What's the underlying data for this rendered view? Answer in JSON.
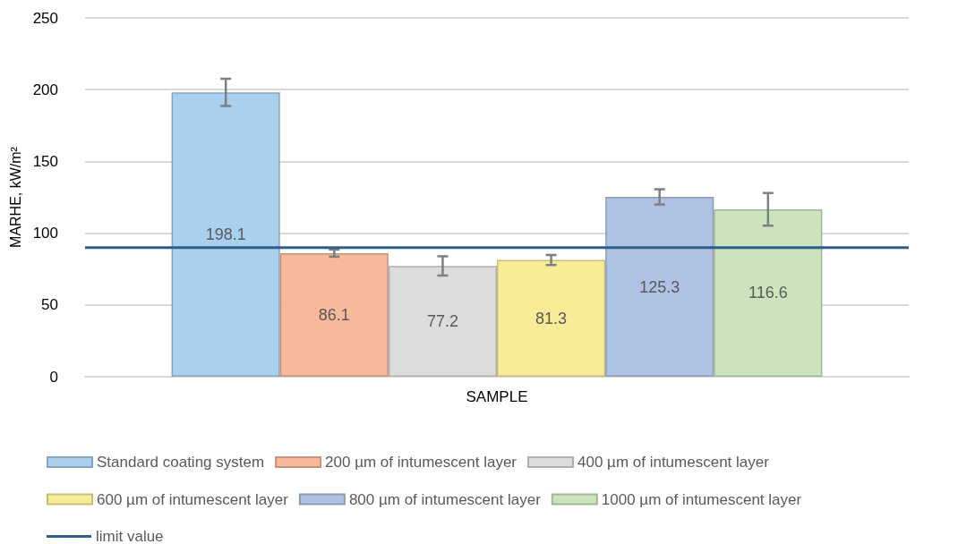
{
  "chart_data": {
    "type": "bar",
    "ylabel": "MARHE, kW/m²",
    "categories": [
      "SAMPLE"
    ],
    "series": [
      {
        "name": "Standard coating system",
        "color": "#a9d0ee",
        "values": [
          198.1
        ],
        "errors": [
          9.5
        ]
      },
      {
        "name": "200 µm of intumescent layer",
        "color": "#f7b89c",
        "values": [
          86.1
        ],
        "errors": [
          2.5
        ]
      },
      {
        "name": "400 µm of intumescent layer",
        "color": "#dcdcdc",
        "values": [
          77.2
        ],
        "errors": [
          6.7
        ]
      },
      {
        "name": "600 µm of intumescent layer",
        "color": "#f9ec98",
        "values": [
          81.3
        ],
        "errors": [
          3.5
        ]
      },
      {
        "name": "800 µm of intumescent layer",
        "color": "#afc2e4",
        "values": [
          125.3
        ],
        "errors": [
          5.3
        ]
      },
      {
        "name": "1000 µm of intumescent layer",
        "color": "#cbe4bd",
        "values": [
          116.6
        ],
        "errors": [
          11.4
        ]
      }
    ],
    "ylim": [
      0,
      250
    ],
    "yticks": [
      0,
      50,
      100,
      150,
      200,
      250
    ],
    "grid": "y",
    "legend": "bottom",
    "data_labels": true,
    "ref_lines": [
      {
        "axis": "y",
        "value": 90,
        "label": "limit value",
        "color": "#2e5f8c"
      }
    ]
  }
}
